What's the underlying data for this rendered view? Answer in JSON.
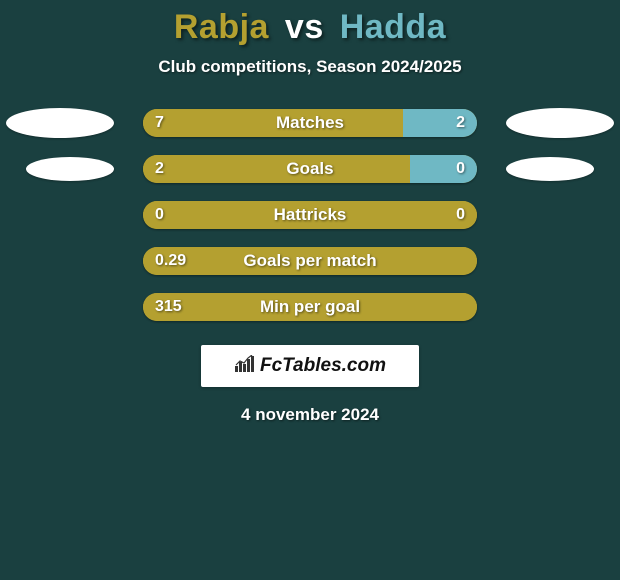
{
  "title": {
    "player1": "Rabja",
    "vs": "vs",
    "player2": "Hadda",
    "player1_color": "#b4a030",
    "vs_color": "#ffffff",
    "player2_color": "#6fb8c4"
  },
  "subtitle": {
    "text": "Club competitions, Season 2024/2025",
    "color": "#ffffff"
  },
  "colors": {
    "background": "#1a4040",
    "bar_left": "#b4a030",
    "bar_right": "#6fb8c4",
    "bar_neutral": "#b4a030",
    "text": "#ffffff",
    "ellipse": "#ffffff"
  },
  "stats": [
    {
      "label": "Matches",
      "left_value": "7",
      "right_value": "2",
      "left_num": 7,
      "right_num": 2,
      "left_pct": 77.8,
      "right_pct": 22.2,
      "show_ellipses": true,
      "ellipse_size": "large"
    },
    {
      "label": "Goals",
      "left_value": "2",
      "right_value": "0",
      "left_num": 2,
      "right_num": 0,
      "left_pct": 80,
      "right_pct": 20,
      "show_ellipses": true,
      "ellipse_size": "small"
    },
    {
      "label": "Hattricks",
      "left_value": "0",
      "right_value": "0",
      "left_num": 0,
      "right_num": 0,
      "left_pct": 100,
      "right_pct": 0,
      "show_ellipses": false
    },
    {
      "label": "Goals per match",
      "left_value": "0.29",
      "right_value": "",
      "left_num": 0.29,
      "right_num": 0,
      "left_pct": 100,
      "right_pct": 0,
      "show_ellipses": false
    },
    {
      "label": "Min per goal",
      "left_value": "315",
      "right_value": "",
      "left_num": 315,
      "right_num": 0,
      "left_pct": 100,
      "right_pct": 0,
      "show_ellipses": false
    }
  ],
  "logo": {
    "text": "FcTables.com",
    "icon_name": "bar-chart-icon"
  },
  "date": {
    "text": "4 november 2024",
    "color": "#ffffff"
  }
}
